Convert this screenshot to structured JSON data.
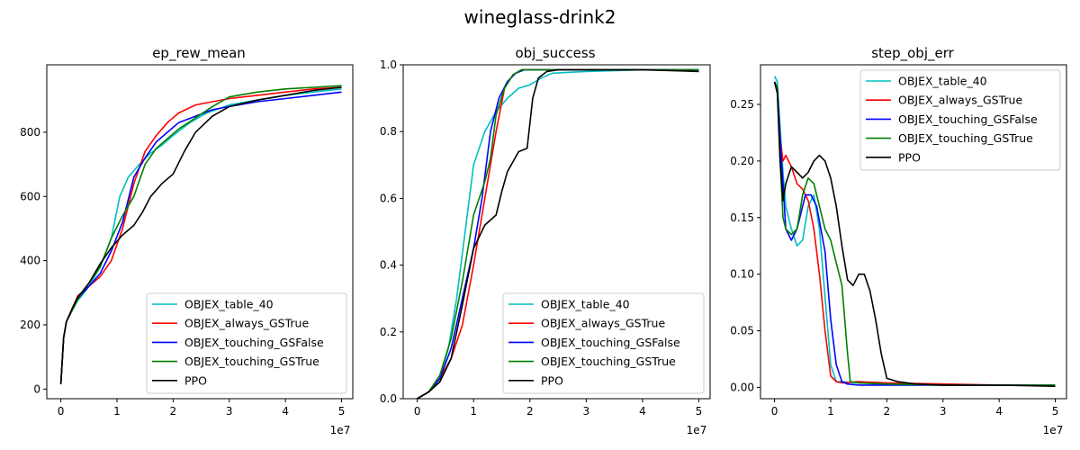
{
  "figure": {
    "title": "wineglass-drink2"
  },
  "series_styles": [
    {
      "name": "OBJEX_table_40",
      "color": "#00bfbf"
    },
    {
      "name": "OBJEX_always_GSTrue",
      "color": "#ff0000"
    },
    {
      "name": "OBJEX_touching_GSFalse",
      "color": "#0000ff"
    },
    {
      "name": "OBJEX_touching_GSTrue",
      "color": "#008000"
    },
    {
      "name": "PPO",
      "color": "#000000"
    }
  ],
  "chart_data": [
    {
      "type": "line",
      "title": "ep_rew_mean",
      "xlabel": "",
      "ylabel": "",
      "x_offset_text": "1e7",
      "xlim": [
        -0.25,
        5.2
      ],
      "ylim": [
        -30,
        1010
      ],
      "xticks": [
        0,
        1,
        2,
        3,
        4,
        5
      ],
      "xtick_labels": [
        "0",
        "1",
        "2",
        "3",
        "4",
        "5"
      ],
      "yticks": [
        0,
        200,
        400,
        600,
        800
      ],
      "ytick_labels": [
        "0",
        "200",
        "400",
        "600",
        "800"
      ],
      "legend": "lower-right",
      "series": [
        {
          "name": "OBJEX_table_40",
          "x": [
            0,
            0.05,
            0.1,
            0.2,
            0.3,
            0.5,
            0.7,
            0.9,
            1.05,
            1.2,
            1.4,
            1.6,
            1.8,
            2.0,
            2.3,
            2.6,
            3.0,
            3.5,
            4.0,
            4.5,
            5.0
          ],
          "y": [
            15,
            160,
            210,
            245,
            275,
            320,
            380,
            470,
            600,
            660,
            700,
            735,
            760,
            790,
            830,
            860,
            885,
            900,
            915,
            925,
            935
          ]
        },
        {
          "name": "OBJEX_always_GSTrue",
          "x": [
            0,
            0.05,
            0.1,
            0.2,
            0.3,
            0.5,
            0.7,
            0.9,
            1.1,
            1.3,
            1.5,
            1.7,
            1.9,
            2.1,
            2.4,
            2.7,
            3.0,
            3.5,
            4.0,
            4.5,
            5.0
          ],
          "y": [
            15,
            160,
            210,
            250,
            290,
            320,
            350,
            400,
            500,
            640,
            740,
            790,
            830,
            860,
            885,
            895,
            905,
            915,
            925,
            935,
            940
          ]
        },
        {
          "name": "OBJEX_touching_GSFalse",
          "x": [
            0,
            0.05,
            0.1,
            0.2,
            0.3,
            0.5,
            0.7,
            0.9,
            1.1,
            1.3,
            1.5,
            1.7,
            1.9,
            2.1,
            2.4,
            2.7,
            3.0,
            3.5,
            4.0,
            4.5,
            5.0
          ],
          "y": [
            15,
            160,
            210,
            245,
            280,
            320,
            360,
            430,
            520,
            660,
            720,
            770,
            800,
            830,
            850,
            870,
            880,
            895,
            905,
            915,
            925
          ]
        },
        {
          "name": "OBJEX_touching_GSTrue",
          "x": [
            0,
            0.05,
            0.1,
            0.2,
            0.3,
            0.5,
            0.7,
            0.9,
            1.1,
            1.3,
            1.5,
            1.7,
            1.9,
            2.1,
            2.4,
            2.7,
            3.0,
            3.5,
            4.0,
            4.5,
            5.0
          ],
          "y": [
            15,
            160,
            210,
            245,
            280,
            330,
            380,
            470,
            540,
            600,
            700,
            750,
            780,
            810,
            845,
            880,
            910,
            925,
            935,
            940,
            945
          ]
        },
        {
          "name": "PPO",
          "x": [
            0,
            0.05,
            0.1,
            0.2,
            0.3,
            0.5,
            0.7,
            0.9,
            1.1,
            1.3,
            1.45,
            1.6,
            1.8,
            2.0,
            2.2,
            2.4,
            2.7,
            3.0,
            3.5,
            4.0,
            4.5,
            5.0
          ],
          "y": [
            15,
            160,
            210,
            250,
            285,
            330,
            390,
            440,
            480,
            510,
            550,
            600,
            640,
            670,
            740,
            800,
            850,
            880,
            900,
            915,
            930,
            940
          ]
        }
      ]
    },
    {
      "type": "line",
      "title": "obj_success",
      "xlabel": "",
      "ylabel": "",
      "x_offset_text": "1e7",
      "xlim": [
        -0.25,
        5.2
      ],
      "ylim": [
        0.0,
        1.0
      ],
      "xticks": [
        0,
        1,
        2,
        3,
        4,
        5
      ],
      "xtick_labels": [
        "0",
        "1",
        "2",
        "3",
        "4",
        "5"
      ],
      "yticks": [
        0.0,
        0.2,
        0.4,
        0.6,
        0.8,
        1.0
      ],
      "ytick_labels": [
        "0.0",
        "0.2",
        "0.4",
        "0.6",
        "0.8",
        "1.0"
      ],
      "legend": "lower-right",
      "series": [
        {
          "name": "OBJEX_table_40",
          "x": [
            0,
            0.2,
            0.4,
            0.55,
            0.7,
            0.85,
            1.0,
            1.2,
            1.4,
            1.6,
            1.8,
            2.0,
            2.2,
            2.4,
            3.0,
            4.0,
            5.0
          ],
          "y": [
            0,
            0.02,
            0.06,
            0.15,
            0.3,
            0.5,
            0.7,
            0.8,
            0.86,
            0.9,
            0.93,
            0.94,
            0.96,
            0.975,
            0.98,
            0.985,
            0.985
          ]
        },
        {
          "name": "OBJEX_always_GSTrue",
          "x": [
            0,
            0.2,
            0.4,
            0.6,
            0.8,
            1.0,
            1.2,
            1.4,
            1.55,
            1.7,
            1.85,
            2.0,
            2.2,
            3.0,
            4.0,
            5.0
          ],
          "y": [
            0,
            0.02,
            0.06,
            0.12,
            0.22,
            0.4,
            0.6,
            0.8,
            0.93,
            0.97,
            0.985,
            0.985,
            0.985,
            0.985,
            0.985,
            0.985
          ]
        },
        {
          "name": "OBJEX_touching_GSFalse",
          "x": [
            0,
            0.2,
            0.4,
            0.6,
            0.8,
            1.0,
            1.15,
            1.3,
            1.45,
            1.6,
            1.75,
            1.9,
            2.1,
            3.0,
            4.0,
            5.0
          ],
          "y": [
            0,
            0.02,
            0.06,
            0.15,
            0.3,
            0.45,
            0.6,
            0.8,
            0.9,
            0.95,
            0.975,
            0.985,
            0.985,
            0.985,
            0.985,
            0.985
          ]
        },
        {
          "name": "OBJEX_touching_GSTrue",
          "x": [
            0,
            0.2,
            0.4,
            0.6,
            0.8,
            1.0,
            1.2,
            1.3,
            1.4,
            1.55,
            1.7,
            1.85,
            2.0,
            2.2,
            3.0,
            4.0,
            5.0
          ],
          "y": [
            0,
            0.02,
            0.07,
            0.18,
            0.35,
            0.55,
            0.65,
            0.72,
            0.85,
            0.93,
            0.97,
            0.985,
            0.985,
            0.985,
            0.985,
            0.985,
            0.985
          ]
        },
        {
          "name": "PPO",
          "x": [
            0,
            0.2,
            0.4,
            0.6,
            0.8,
            1.0,
            1.2,
            1.4,
            1.5,
            1.6,
            1.8,
            1.95,
            2.05,
            2.15,
            2.3,
            2.5,
            3.0,
            4.0,
            5.0
          ],
          "y": [
            0,
            0.02,
            0.05,
            0.12,
            0.28,
            0.45,
            0.52,
            0.55,
            0.62,
            0.68,
            0.74,
            0.75,
            0.9,
            0.96,
            0.98,
            0.985,
            0.985,
            0.985,
            0.98
          ]
        }
      ]
    },
    {
      "type": "line",
      "title": "step_obj_err",
      "xlabel": "",
      "ylabel": "",
      "x_offset_text": "1e7",
      "xlim": [
        -0.25,
        5.2
      ],
      "ylim": [
        -0.01,
        0.285
      ],
      "xticks": [
        0,
        1,
        2,
        3,
        4,
        5
      ],
      "xtick_labels": [
        "0",
        "1",
        "2",
        "3",
        "4",
        "5"
      ],
      "yticks": [
        0.0,
        0.05,
        0.1,
        0.15,
        0.2,
        0.25
      ],
      "ytick_labels": [
        "0.00",
        "0.05",
        "0.10",
        "0.15",
        "0.20",
        "0.25"
      ],
      "legend": "upper-right",
      "series": [
        {
          "name": "OBJEX_table_40",
          "x": [
            0,
            0.05,
            0.1,
            0.15,
            0.2,
            0.3,
            0.4,
            0.5,
            0.6,
            0.7,
            0.8,
            0.9,
            1.0,
            1.1,
            1.2,
            1.5,
            2.0,
            3.0,
            4.0,
            5.0
          ],
          "y": [
            0.275,
            0.27,
            0.23,
            0.19,
            0.16,
            0.14,
            0.125,
            0.13,
            0.16,
            0.17,
            0.14,
            0.08,
            0.02,
            0.005,
            0.005,
            0.004,
            0.003,
            0.002,
            0.002,
            0.002
          ]
        },
        {
          "name": "OBJEX_always_GSTrue",
          "x": [
            0,
            0.05,
            0.1,
            0.15,
            0.2,
            0.3,
            0.4,
            0.5,
            0.6,
            0.7,
            0.8,
            0.9,
            1.0,
            1.1,
            1.2,
            1.5,
            2.0,
            3.0,
            4.0,
            5.0
          ],
          "y": [
            0.27,
            0.26,
            0.22,
            0.2,
            0.205,
            0.195,
            0.18,
            0.175,
            0.165,
            0.14,
            0.1,
            0.05,
            0.01,
            0.005,
            0.004,
            0.005,
            0.004,
            0.003,
            0.002,
            0.002
          ]
        },
        {
          "name": "OBJEX_touching_GSFalse",
          "x": [
            0,
            0.05,
            0.1,
            0.15,
            0.2,
            0.3,
            0.4,
            0.5,
            0.55,
            0.65,
            0.75,
            0.9,
            1.0,
            1.1,
            1.2,
            1.3,
            1.5,
            2.0,
            3.0,
            4.0,
            5.0
          ],
          "y": [
            0.27,
            0.265,
            0.22,
            0.18,
            0.14,
            0.13,
            0.14,
            0.16,
            0.17,
            0.17,
            0.16,
            0.12,
            0.06,
            0.02,
            0.005,
            0.003,
            0.002,
            0.002,
            0.002,
            0.002,
            0.002
          ]
        },
        {
          "name": "OBJEX_touching_GSTrue",
          "x": [
            0,
            0.05,
            0.1,
            0.15,
            0.2,
            0.3,
            0.4,
            0.5,
            0.6,
            0.7,
            0.8,
            0.9,
            1.0,
            1.1,
            1.2,
            1.25,
            1.3,
            1.35,
            1.5,
            2.0,
            3.0,
            4.0,
            5.0
          ],
          "y": [
            0.27,
            0.265,
            0.2,
            0.15,
            0.14,
            0.135,
            0.14,
            0.17,
            0.185,
            0.18,
            0.16,
            0.14,
            0.13,
            0.11,
            0.09,
            0.06,
            0.03,
            0.005,
            0.004,
            0.003,
            0.002,
            0.002,
            0.002
          ]
        },
        {
          "name": "PPO",
          "x": [
            0,
            0.05,
            0.1,
            0.15,
            0.2,
            0.3,
            0.4,
            0.5,
            0.6,
            0.7,
            0.8,
            0.9,
            1.0,
            1.1,
            1.2,
            1.3,
            1.4,
            1.5,
            1.6,
            1.7,
            1.8,
            1.9,
            2.0,
            2.2,
            2.5,
            3.0,
            4.0,
            5.0
          ],
          "y": [
            0.27,
            0.26,
            0.2,
            0.165,
            0.18,
            0.195,
            0.19,
            0.185,
            0.19,
            0.2,
            0.205,
            0.2,
            0.185,
            0.16,
            0.125,
            0.095,
            0.09,
            0.1,
            0.1,
            0.085,
            0.06,
            0.03,
            0.008,
            0.005,
            0.003,
            0.002,
            0.002,
            0.001
          ]
        }
      ]
    }
  ]
}
